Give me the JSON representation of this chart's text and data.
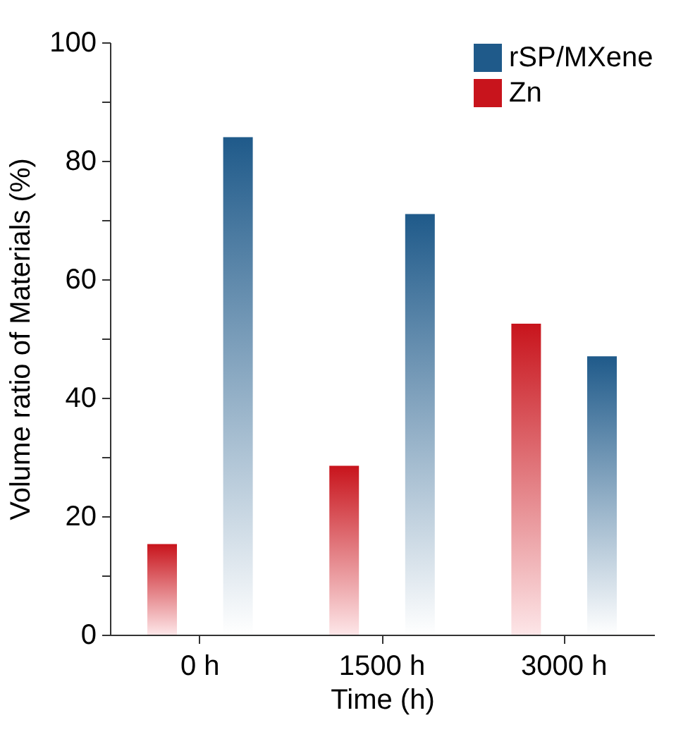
{
  "chart_data": {
    "type": "bar",
    "xlabel": "Time (h)",
    "ylabel": "Volume ratio of Materials (%)",
    "categories": [
      "0 h",
      "1500 h",
      "3000 h"
    ],
    "series": [
      {
        "name": "rSP/MXene",
        "color": "#1f5a8a",
        "values": [
          84,
          71,
          47
        ]
      },
      {
        "name": "Zn",
        "color": "#c8141c",
        "values": [
          15.3,
          28.5,
          52.5
        ]
      }
    ],
    "ylim": [
      0,
      100
    ],
    "yticks": [
      0,
      {
        "value": 10,
        "label": null
      },
      20,
      {
        "value": 30,
        "label": null
      },
      40,
      {
        "value": 50,
        "label": null
      },
      60,
      {
        "value": 70,
        "label": null
      },
      80,
      {
        "value": 90,
        "label": null
      },
      100
    ],
    "grid": false,
    "legend": "top right"
  }
}
